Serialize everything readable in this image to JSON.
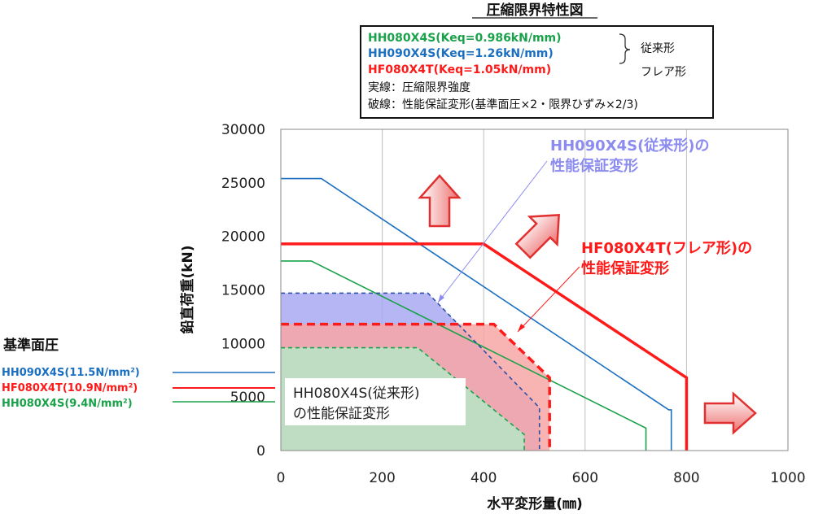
{
  "chart_data": {
    "type": "line",
    "title": "圧縮限界特性図",
    "xlabel": "水平変形量(㎜)",
    "ylabel": "鉛直荷重(kN)",
    "xlim": [
      0,
      1000
    ],
    "ylim": [
      0,
      30000
    ],
    "x_ticks": [
      "0",
      "200",
      "400",
      "600",
      "800",
      "1000"
    ],
    "y_ticks": [
      "0",
      "5000",
      "10000",
      "15000",
      "20000",
      "25000",
      "30000"
    ],
    "grid": "vertical",
    "legend": {
      "items": [
        {
          "label": "HH080X4S(Keq=0.986kN/mm)",
          "color": "#1aa24a"
        },
        {
          "label": "HH090X4S(Keq=1.26kN/mm)",
          "color": "#1b6fc0"
        },
        {
          "label": "HF080X4T(Keq=1.05kN/mm)",
          "color": "#ff1a1a"
        }
      ],
      "brace_label_1": "従来形",
      "brace_label_2": "フレア形",
      "note_1": "実線：圧縮限界強度",
      "note_2": "破線：性能保証変形(基準面圧×2・限界ひずみ×2/3)"
    },
    "series": [
      {
        "name": "HH090X4S(Keq=1.26kN/mm)",
        "style": "solid",
        "color": "#1b6fc0",
        "points": [
          [
            0,
            25400
          ],
          [
            80,
            25400
          ],
          [
            765,
            3800
          ],
          [
            770,
            3800
          ],
          [
            770,
            0
          ]
        ]
      },
      {
        "name": "HF080X4T(Keq=1.05kN/mm)",
        "style": "solid",
        "color": "#ff1a1a",
        "points": [
          [
            0,
            19300
          ],
          [
            400,
            19300
          ],
          [
            800,
            6800
          ],
          [
            800,
            0
          ]
        ]
      },
      {
        "name": "HH080X4S(Keq=0.986kN/mm)",
        "style": "solid",
        "color": "#1aa24a",
        "points": [
          [
            0,
            17700
          ],
          [
            60,
            17700
          ],
          [
            720,
            2100
          ],
          [
            720,
            0
          ]
        ]
      },
      {
        "name": "HH090X4S 性能保証変形",
        "style": "dashed",
        "color": "#2b4fa8",
        "fill": "#a9a9f2",
        "points": [
          [
            0,
            14700
          ],
          [
            290,
            14700
          ],
          [
            510,
            4000
          ],
          [
            510,
            0
          ]
        ]
      },
      {
        "name": "HF080X4T 性能保証変形",
        "style": "dashed",
        "color": "#ff1a1a",
        "fill": "#f7a6a6",
        "points": [
          [
            0,
            11800
          ],
          [
            420,
            11800
          ],
          [
            530,
            6800
          ],
          [
            530,
            0
          ]
        ]
      },
      {
        "name": "HH080X4S 性能保証変形",
        "style": "dashed",
        "color": "#1aa24a",
        "fill": "#b6e6c6",
        "points": [
          [
            0,
            9600
          ],
          [
            270,
            9600
          ],
          [
            480,
            1500
          ],
          [
            480,
            0
          ]
        ]
      }
    ],
    "annotations": {
      "hh090_label_1": "HH090X4S(従来形)の",
      "hh090_label_2": "性能保証変形",
      "hf080_label_1": "HF080X4T(フレア形)の",
      "hf080_label_2": "性能保証変形",
      "hh080_label_1": "HH080X4S(従来形)",
      "hh080_label_2": "の性能保証変形"
    },
    "base_pressure": {
      "title": "基準面圧",
      "items": [
        {
          "label": "HH090X4S(11.5N/mm²)",
          "color": "#1b6fc0",
          "value": 11.5
        },
        {
          "label": "HF080X4T(10.9N/mm²)",
          "color": "#ff1a1a",
          "value": 10.9
        },
        {
          "label": "HH080X4S(9.4N/mm²)",
          "color": "#1aa24a",
          "value": 9.4
        }
      ]
    },
    "colors": {
      "blue": "#1b6fc0",
      "red": "#ff1a1a",
      "green": "#1aa24a",
      "arrow_fill": "#f08a8a",
      "arrow_stroke": "#e03030",
      "grid": "#bfbfbf"
    }
  }
}
